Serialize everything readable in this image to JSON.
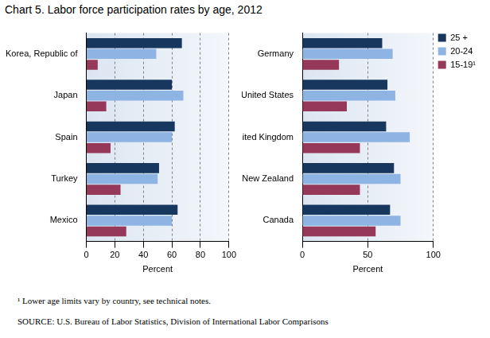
{
  "title": "Chart 5.  Labor force participation rates by age, 2012",
  "footnote": "¹ Lower age limits vary by country, see technical notes.",
  "source": "SOURCE: U.S. Bureau of Labor Statistics,  Division of International Labor Comparisons",
  "chart_data": [
    {
      "type": "bar",
      "orientation": "horizontal",
      "grid": true,
      "categories": [
        "Korea, Republic of",
        "Japan",
        "Spain",
        "Turkey",
        "Mexico"
      ],
      "series": [
        {
          "name": "25 +",
          "color": "#17375e",
          "values": [
            67,
            60,
            62,
            51,
            64
          ]
        },
        {
          "name": "20-24",
          "color": "#8eb4e3",
          "values": [
            49,
            68,
            60,
            50,
            60
          ]
        },
        {
          "name": "15-19¹",
          "color": "#953859",
          "values": [
            8,
            14,
            17,
            24,
            28
          ]
        }
      ],
      "x_label": "Percent",
      "xlim": [
        0,
        100
      ],
      "xticks": [
        0,
        20,
        40,
        60,
        80,
        100
      ]
    },
    {
      "type": "bar",
      "orientation": "horizontal",
      "grid": true,
      "legend": "top-right",
      "categories": [
        "Germany",
        "United States",
        "United Kingdom",
        "New Zealand",
        "Canada"
      ],
      "series": [
        {
          "name": "25 +",
          "color": "#17375e",
          "values": [
            61,
            65,
            64,
            70,
            67
          ]
        },
        {
          "name": "20-24",
          "color": "#8eb4e3",
          "values": [
            69,
            71,
            82,
            75,
            75
          ]
        },
        {
          "name": "15-19¹",
          "color": "#953859",
          "values": [
            28,
            34,
            44,
            44,
            56
          ]
        }
      ],
      "x_label": "Percent",
      "xlim": [
        0,
        100
      ],
      "xticks": [
        0,
        50,
        100
      ]
    }
  ]
}
